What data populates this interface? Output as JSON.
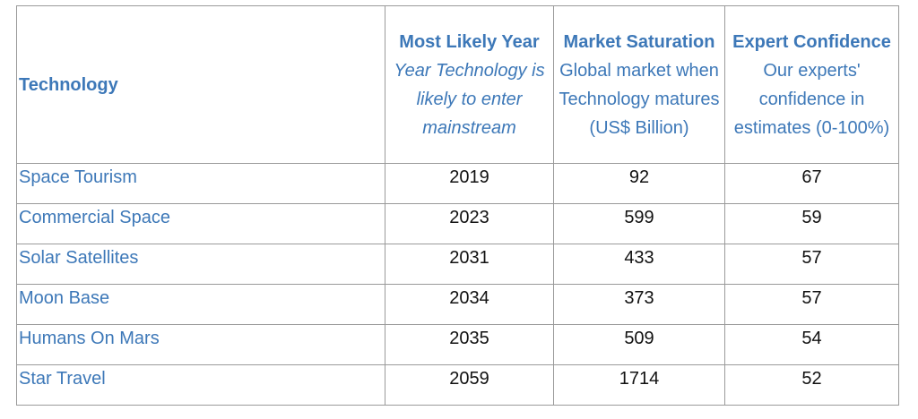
{
  "table": {
    "columns": [
      {
        "title": "Technology",
        "subtitle": ""
      },
      {
        "title": "Most Likely Year",
        "subtitle": "Year Technology is likely to enter mainstream"
      },
      {
        "title": "Market Saturation",
        "subtitle": "Global market when Technology matures (US$ Billion)"
      },
      {
        "title": "Expert Confidence",
        "subtitle": "Our experts' confidence in estimates (0-100%)"
      }
    ],
    "rows": [
      {
        "technology": "Space Tourism",
        "year": "2019",
        "market": "92",
        "confidence": "67"
      },
      {
        "technology": "Commercial Space",
        "year": "2023",
        "market": "599",
        "confidence": "59"
      },
      {
        "technology": "Solar Satellites",
        "year": "2031",
        "market": "433",
        "confidence": "57"
      },
      {
        "technology": "Moon Base",
        "year": "2034",
        "market": "373",
        "confidence": "57"
      },
      {
        "technology": "Humans On Mars",
        "year": "2035",
        "market": "509",
        "confidence": "54"
      },
      {
        "technology": "Star Travel",
        "year": "2059",
        "market": "1714",
        "confidence": "52"
      }
    ]
  },
  "colors": {
    "header_text": "#3d78b8",
    "technology_text": "#3d78b8",
    "cell_text": "#111111",
    "border": "#9a9a9a"
  }
}
